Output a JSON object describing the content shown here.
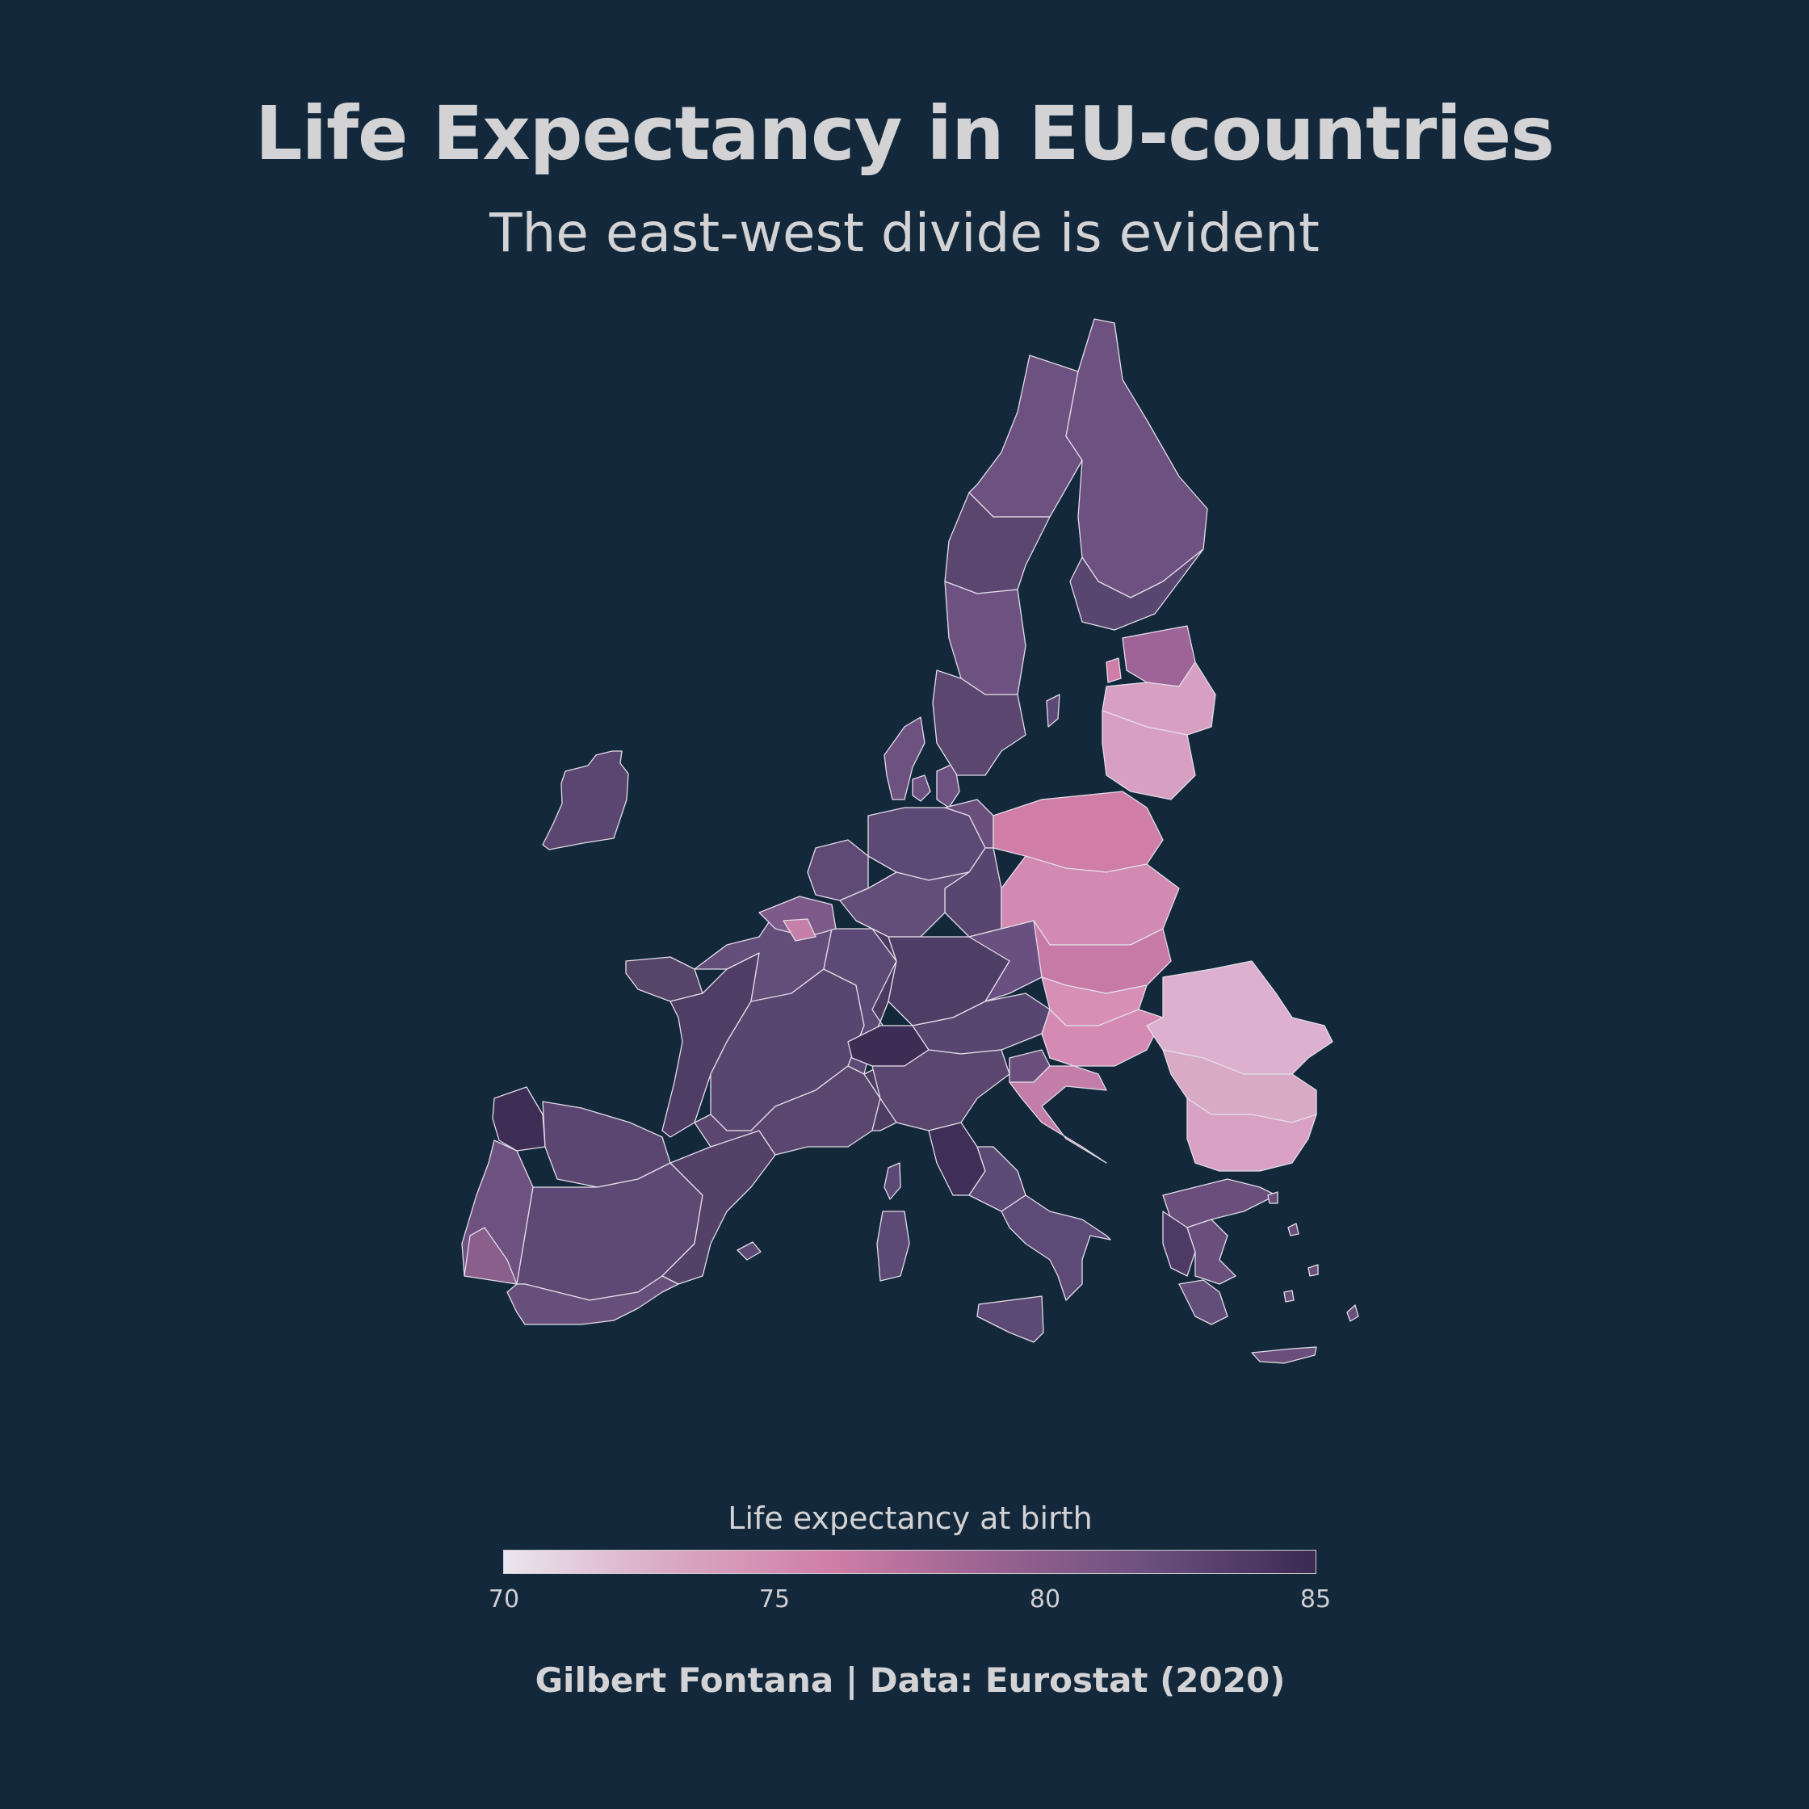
{
  "title": "Life Expectancy in EU-countries",
  "subtitle": "The east-west divide is evident",
  "legend": {
    "title": "Life expectancy at birth",
    "ticks": [
      "70",
      "75",
      "80",
      "85"
    ],
    "min": 70,
    "max": 85,
    "colors": [
      "#ebe6ef",
      "#d9aac6",
      "#d07ea7",
      "#9a6391",
      "#6a4f7d",
      "#3b2a52"
    ]
  },
  "caption": "Gilbert Fontana | Data: Eurostat (2020)",
  "colors": {
    "background": "#13293b",
    "border": "#e3dde8",
    "text": "#d3d3d6"
  }
}
